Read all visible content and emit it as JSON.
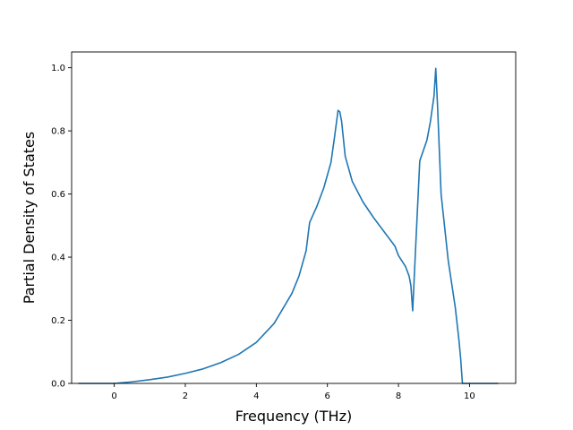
{
  "chart_data": {
    "type": "line",
    "title": "",
    "xlabel": "Frequency (THz)",
    "ylabel": "Partial Density of States",
    "xlim": [
      -1.2,
      11.3
    ],
    "ylim": [
      0.0,
      1.05
    ],
    "xticks": [
      0,
      2,
      4,
      6,
      8,
      10
    ],
    "yticks": [
      0.0,
      0.2,
      0.4,
      0.6,
      0.8,
      1.0
    ],
    "xtick_labels": [
      "0",
      "2",
      "4",
      "6",
      "8",
      "10"
    ],
    "ytick_labels": [
      "0.0",
      "0.2",
      "0.4",
      "0.6",
      "0.8",
      "1.0"
    ],
    "grid": false,
    "legend": false,
    "series": [
      {
        "color": "#1f77b4",
        "x": [
          -1.0,
          -0.5,
          0.0,
          0.5,
          1.0,
          1.5,
          2.0,
          2.5,
          3.0,
          3.5,
          4.0,
          4.5,
          5.0,
          5.2,
          5.4,
          5.5,
          5.7,
          5.9,
          6.1,
          6.2,
          6.3,
          6.35,
          6.4,
          6.5,
          6.7,
          7.0,
          7.3,
          7.6,
          7.9,
          8.0,
          8.2,
          8.3,
          8.35,
          8.4,
          8.45,
          8.5,
          8.6,
          8.8,
          8.9,
          9.0,
          9.05,
          9.1,
          9.2,
          9.4,
          9.6,
          9.7,
          9.75,
          9.8,
          10.0,
          10.5,
          10.8
        ],
        "y": [
          0.0,
          0.0,
          0.0,
          0.005,
          0.012,
          0.02,
          0.032,
          0.046,
          0.066,
          0.092,
          0.13,
          0.19,
          0.285,
          0.34,
          0.42,
          0.51,
          0.56,
          0.62,
          0.7,
          0.78,
          0.865,
          0.86,
          0.83,
          0.72,
          0.64,
          0.575,
          0.525,
          0.48,
          0.435,
          0.405,
          0.37,
          0.34,
          0.31,
          0.23,
          0.35,
          0.47,
          0.705,
          0.77,
          0.83,
          0.91,
          0.998,
          0.88,
          0.6,
          0.39,
          0.24,
          0.14,
          0.08,
          0.0,
          0.0,
          0.0,
          0.0
        ]
      }
    ]
  }
}
